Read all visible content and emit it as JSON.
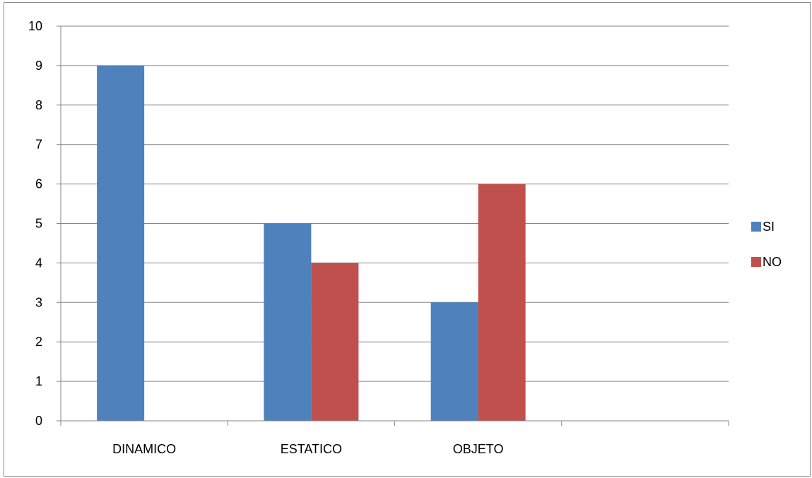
{
  "chart_data": {
    "type": "bar",
    "categories": [
      "DINAMICO",
      "ESTATICO",
      "OBJETO",
      ""
    ],
    "series": [
      {
        "name": "SI",
        "color": "#4f81bd",
        "values": [
          9,
          5,
          3,
          null
        ]
      },
      {
        "name": "NO",
        "color": "#c0504d",
        "values": [
          null,
          4,
          6,
          null
        ]
      }
    ],
    "ylim": [
      0,
      10
    ],
    "yticks": [
      0,
      1,
      2,
      3,
      4,
      5,
      6,
      7,
      8,
      9,
      10
    ],
    "grid": true,
    "legend": "right"
  }
}
